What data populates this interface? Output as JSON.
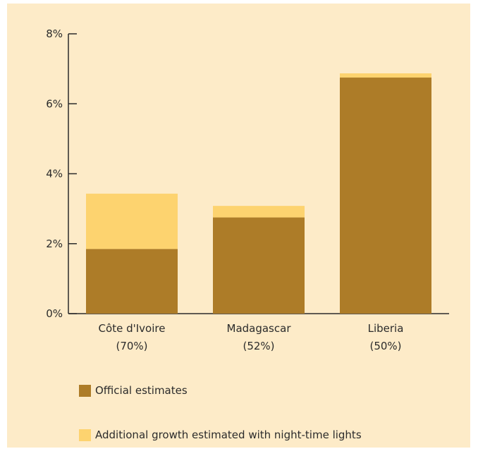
{
  "chart_data": {
    "type": "bar",
    "stacked": true,
    "categories": [
      "Côte d'Ivoire",
      "Madagascar",
      "Liberia"
    ],
    "category_sublabels": [
      "(70%)",
      "(52%)",
      "(50%)"
    ],
    "series": [
      {
        "name": "Official estimates",
        "color": "#ad7c28",
        "values": [
          1.85,
          2.75,
          6.75
        ]
      },
      {
        "name": "Additional growth estimated with night-time lights",
        "color": "#fdd36f",
        "values": [
          1.58,
          0.33,
          0.12
        ]
      }
    ],
    "ylim": [
      0,
      8
    ],
    "yticks": [
      "0%",
      "2%",
      "4%",
      "6%",
      "8%"
    ],
    "ytick_values": [
      0,
      2,
      4,
      6,
      8
    ],
    "legend_position": "bottom-left",
    "grid": false
  }
}
